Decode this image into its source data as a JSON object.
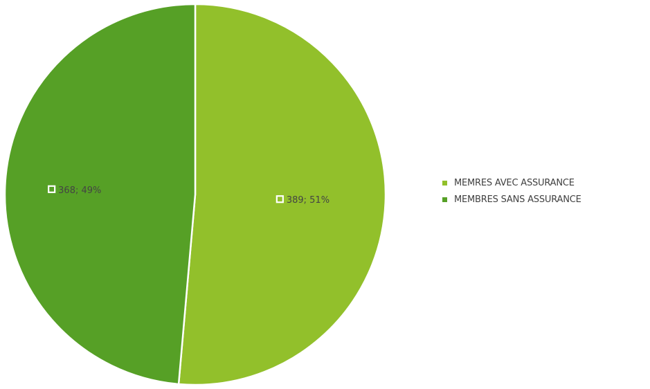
{
  "chart_data": {
    "type": "pie",
    "title": "",
    "categories": [
      "MEMRES AVEC ASSURANCE",
      "MEMBRES SANS ASSURANCE"
    ],
    "values": [
      389,
      368
    ],
    "percentages": [
      51,
      49
    ],
    "data_labels": [
      "389; 51%",
      "368; 49%"
    ],
    "colors": [
      "#92c02b",
      "#56a026"
    ],
    "legend_position": "right",
    "start_angle": "12 o'clock",
    "direction": "clockwise"
  }
}
